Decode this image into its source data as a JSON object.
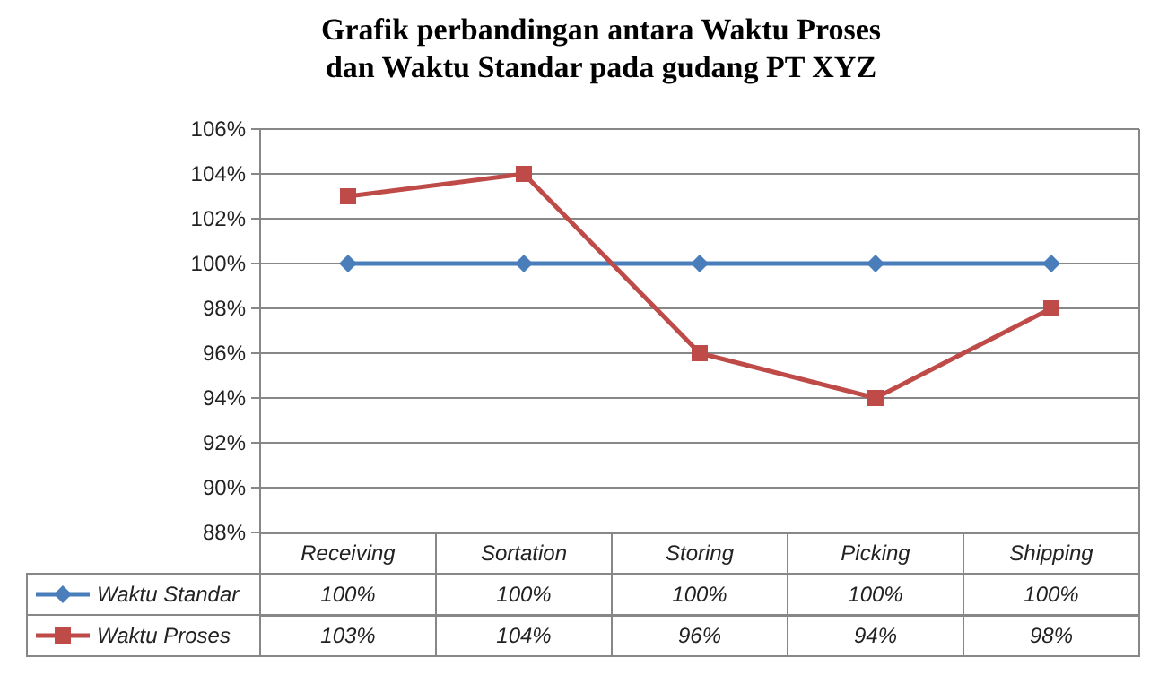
{
  "chart_data": {
    "type": "line",
    "title": "Grafik perbandingan antara Waktu Proses\ndan Waktu Standar pada gudang PT XYZ",
    "categories": [
      "Receiving",
      "Sortation",
      "Storing",
      "Picking",
      "Shipping"
    ],
    "series": [
      {
        "name": "Waktu Standar",
        "color": "#4a7ebb",
        "marker": "diamond",
        "values": [
          100,
          100,
          100,
          100,
          100
        ],
        "value_labels": [
          "100%",
          "100%",
          "100%",
          "100%",
          "100%"
        ]
      },
      {
        "name": "Waktu Proses",
        "color": "#be4b48",
        "marker": "square",
        "values": [
          103,
          104,
          96,
          94,
          98
        ],
        "value_labels": [
          "103%",
          "104%",
          "96%",
          "94%",
          "98%"
        ]
      }
    ],
    "ylim": [
      88,
      106
    ],
    "yticks": [
      {
        "value": 88,
        "label": "88%"
      },
      {
        "value": 90,
        "label": "90%"
      },
      {
        "value": 92,
        "label": "92%"
      },
      {
        "value": 94,
        "label": "94%"
      },
      {
        "value": 96,
        "label": "96%"
      },
      {
        "value": 98,
        "label": "98%"
      },
      {
        "value": 100,
        "label": "100%"
      },
      {
        "value": 102,
        "label": "102%"
      },
      {
        "value": 104,
        "label": "104%"
      },
      {
        "value": 106,
        "label": "106%"
      }
    ],
    "grid": "y",
    "legend": "bottom",
    "line_style": "solid"
  }
}
